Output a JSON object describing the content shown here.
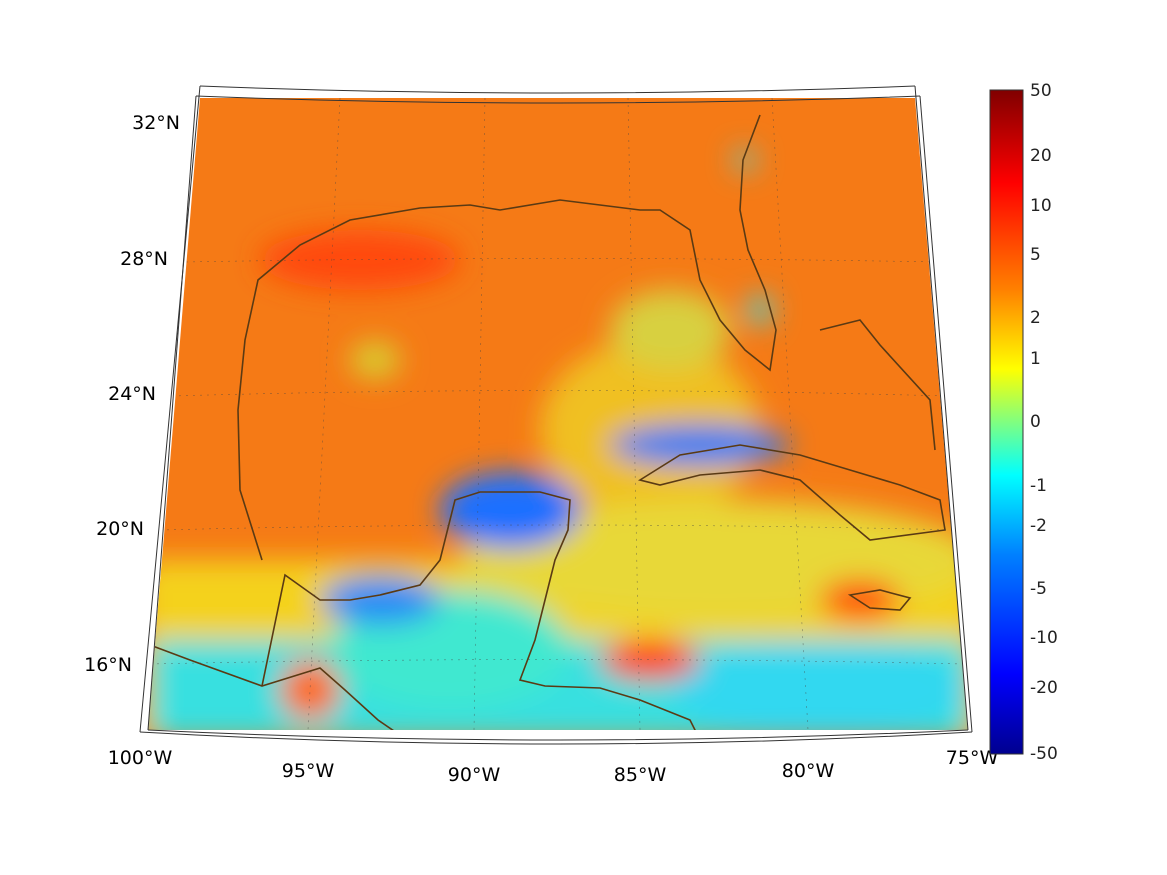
{
  "figure": {
    "lon_labels": [
      "100°W",
      "95°W",
      "90°W",
      "85°W",
      "80°W",
      "75°W"
    ],
    "lat_labels": [
      "16°N",
      "20°N",
      "24°N",
      "28°N",
      "32°N"
    ],
    "colorbar": {
      "tick_labels": [
        "50",
        "20",
        "10",
        "5",
        "2",
        "1",
        "0",
        "-1",
        "-2",
        "-5",
        "-10",
        "-20",
        "-50"
      ],
      "colormap": "jet",
      "colors": [
        "#00008f",
        "#0000ff",
        "#0080ff",
        "#00ffff",
        "#80ff80",
        "#ffff00",
        "#ff8000",
        "#ff0000",
        "#800000"
      ]
    },
    "coastline_color": "#5a3a14",
    "land_water_dominant_color": "#f57a16"
  }
}
